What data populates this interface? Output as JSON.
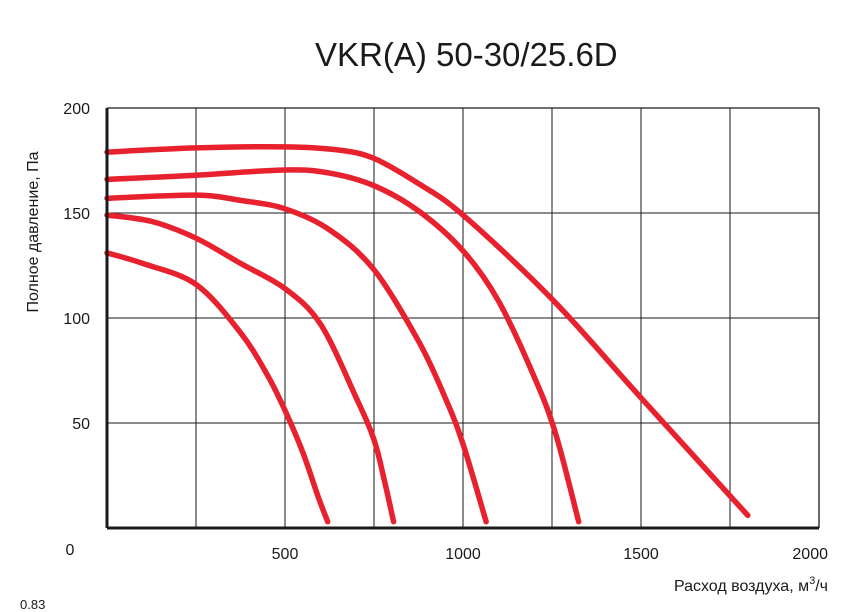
{
  "chart_data": {
    "type": "line",
    "title": "VKR(A) 50-30/25.6D",
    "xlabel": "Расход воздуха, м",
    "xlabel_sup": "3",
    "xlabel_tail": "/ч",
    "ylabel": "Полное давление, Па",
    "xlim": [
      0,
      2000
    ],
    "ylim": [
      0,
      200
    ],
    "x_ticks": [
      500,
      1000,
      1500,
      2000
    ],
    "y_ticks": [
      50,
      100,
      150,
      200
    ],
    "origin_label": "0",
    "grid": true,
    "line_color": "#e8212e",
    "series": [
      {
        "points": [
          [
            0,
            179
          ],
          [
            250,
            181
          ],
          [
            500,
            181.5
          ],
          [
            650,
            180
          ],
          [
            750,
            176
          ],
          [
            875,
            164
          ],
          [
            1000,
            149
          ],
          [
            1250,
            109
          ],
          [
            1500,
            62
          ],
          [
            1800,
            6
          ]
        ]
      },
      {
        "points": [
          [
            0,
            166
          ],
          [
            250,
            168
          ],
          [
            500,
            170.5
          ],
          [
            625,
            169
          ],
          [
            750,
            163
          ],
          [
            875,
            151
          ],
          [
            1000,
            132
          ],
          [
            1100,
            108
          ],
          [
            1200,
            72
          ],
          [
            1260,
            45
          ],
          [
            1325,
            3
          ]
        ]
      },
      {
        "points": [
          [
            0,
            157
          ],
          [
            250,
            158.5
          ],
          [
            375,
            156
          ],
          [
            500,
            152
          ],
          [
            625,
            142
          ],
          [
            750,
            123
          ],
          [
            875,
            89
          ],
          [
            950,
            62
          ],
          [
            1000,
            40
          ],
          [
            1065,
            3
          ]
        ]
      },
      {
        "points": [
          [
            0,
            149
          ],
          [
            125,
            146
          ],
          [
            250,
            138
          ],
          [
            375,
            126
          ],
          [
            500,
            114
          ],
          [
            600,
            97
          ],
          [
            700,
            62
          ],
          [
            750,
            42
          ],
          [
            780,
            22
          ],
          [
            805,
            3
          ]
        ]
      },
      {
        "points": [
          [
            0,
            131
          ],
          [
            100,
            126
          ],
          [
            250,
            116
          ],
          [
            375,
            93
          ],
          [
            450,
            73
          ],
          [
            500,
            56
          ],
          [
            550,
            36
          ],
          [
            595,
            14
          ],
          [
            620,
            3
          ]
        ]
      }
    ],
    "footer_fragment": "0.83"
  }
}
